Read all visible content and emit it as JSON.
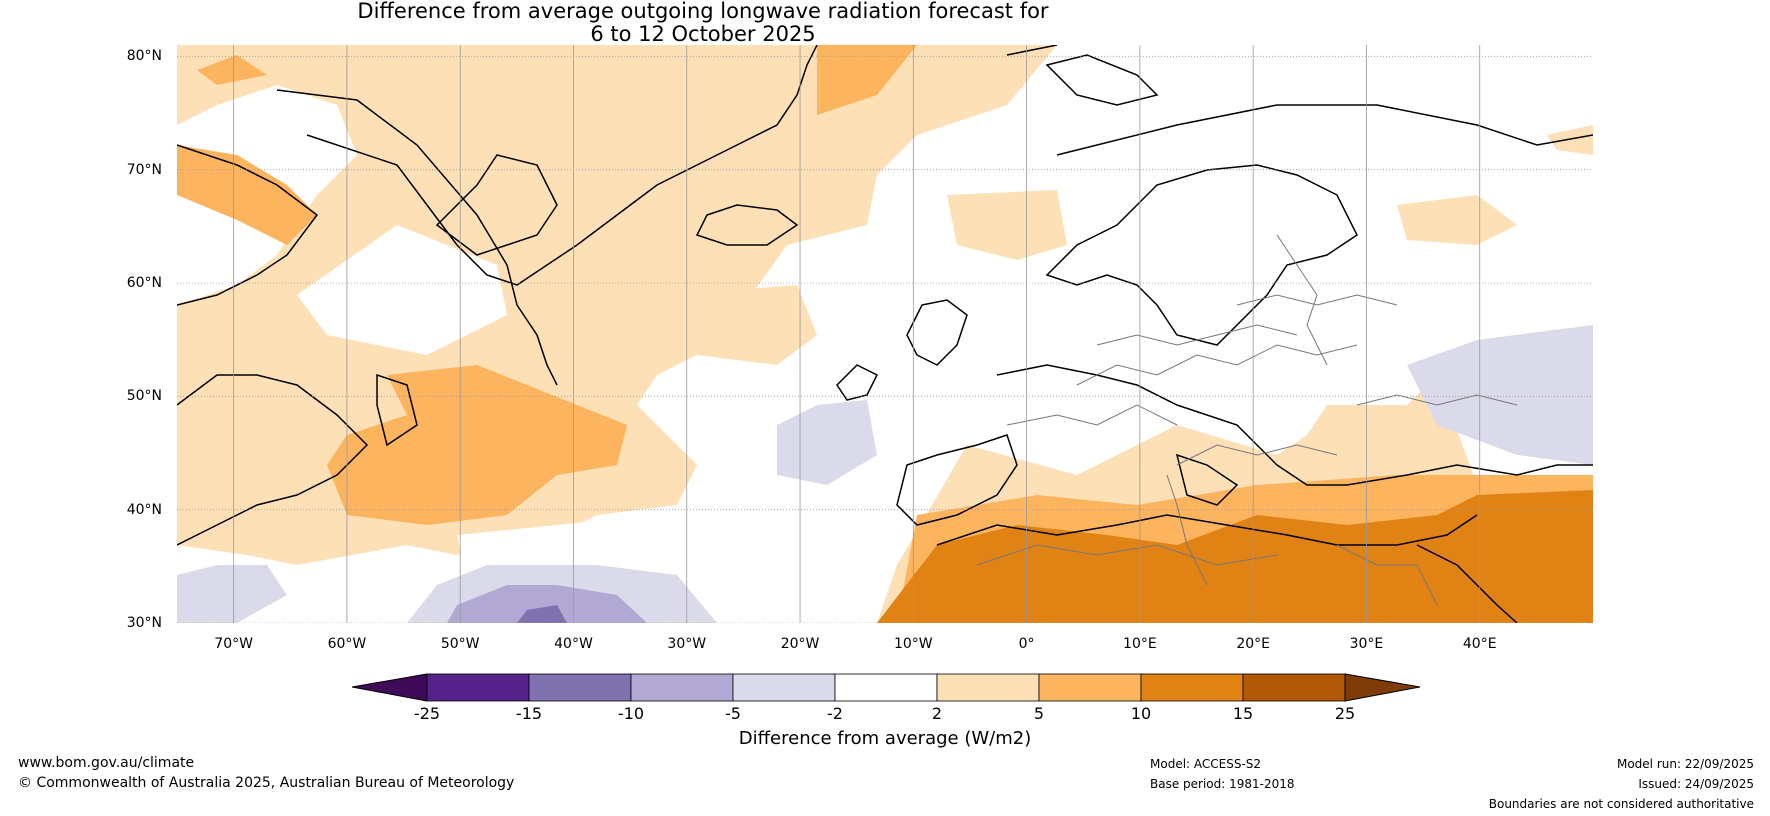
{
  "title": {
    "line1": "Difference from average outgoing longwave radiation forecast for",
    "line2": "6 to 12 October 2025"
  },
  "map": {
    "lat_labels": [
      "80°N",
      "70°N",
      "60°N",
      "50°N",
      "40°N",
      "30°N"
    ],
    "lon_labels": [
      "70°W",
      "60°W",
      "50°W",
      "40°W",
      "30°W",
      "20°W",
      "10°W",
      "0°",
      "10°E",
      "20°E",
      "30°E",
      "40°E"
    ],
    "lat_range": [
      30,
      81
    ],
    "lon_range": [
      -75,
      50
    ]
  },
  "colorbar": {
    "ticks": [
      "-25",
      "-15",
      "-10",
      "-5",
      "-2",
      "2",
      "5",
      "10",
      "15",
      "25"
    ],
    "colors": [
      "#3f0a57",
      "#54228a",
      "#8072ae",
      "#b1a9d3",
      "#dadaeb",
      "#ffffff",
      "#fde0b6",
      "#fcb45e",
      "#e08214",
      "#b35806",
      "#7f3b08"
    ],
    "label": "Difference from average (W/m2)"
  },
  "footer": {
    "website": "www.bom.gov.au/climate",
    "copyright": "© Commonwealth of Australia 2025, Australian Bureau of Meteorology",
    "model": "Model: ACCESS-S2",
    "base_period": "Base period: 1981-2018",
    "model_run": "Model run: 22/09/2025",
    "issued": "Issued: 24/09/2025",
    "disclaimer": "Boundaries are not considered authoritative"
  }
}
